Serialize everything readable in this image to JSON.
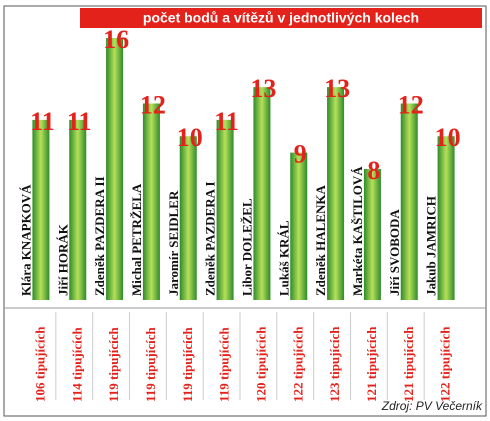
{
  "chart_data": {
    "type": "bar",
    "title": "počet bodů a vítězů v jednotlivých kolech",
    "categories": [
      "Klára KNAPKOVÁ",
      "Jiří HORÁK",
      "Zdeněk PAZDERA II",
      "Michal PETRŽELA",
      "Jaromír SEIDLER",
      "Zdeněk PAZDERA I",
      "Libor DOLEŽEL",
      "Lukáš KRÁL",
      "Zdeněk HALENKA",
      "Markéta KAŠTILOVÁ",
      "Jiří SVOBODA",
      "Jakub JAMRICH"
    ],
    "values": [
      11,
      11,
      16,
      12,
      10,
      11,
      13,
      9,
      13,
      8,
      12,
      10
    ],
    "tipers": [
      "106 tipujících",
      "114 tipujících",
      "119 tipujících",
      "119 tipujících",
      "119 tipujících",
      "119 tipujících",
      "120 tipujících",
      "122 tipujících",
      "123 tipujících",
      "121 tipujících",
      "121 tipujících",
      "122 tipujících"
    ],
    "color": "#3aa832",
    "source": "Zdroj: PV Večerník"
  }
}
